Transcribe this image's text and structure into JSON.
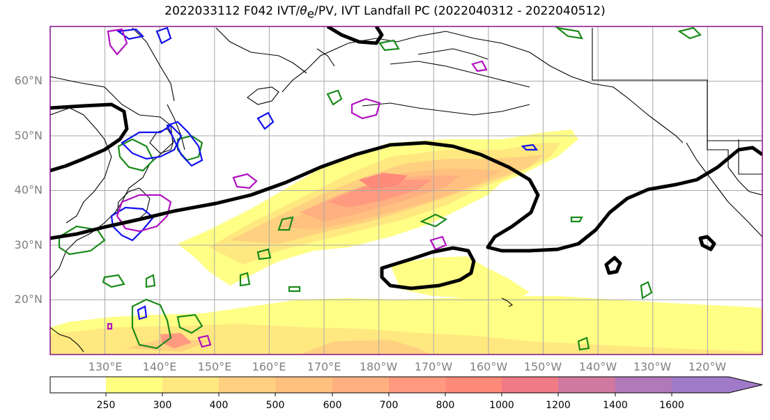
{
  "title": "2022033112 F042 IVT/θe/PV, IVT Landfall PC (2022040312 - 2022040512)",
  "title_parts": {
    "prefix": "2022033112 F042 IVT/",
    "theta": "θ",
    "theta_sub": "e",
    "suffix": "/PV, IVT Landfall PC (2022040312 - 2022040512)"
  },
  "map": {
    "projection": "PlateCarree",
    "lon_range": [
      120,
      250
    ],
    "lat_range": [
      10,
      70
    ],
    "gridlines": true,
    "lat_labels": [
      "60°N",
      "50°N",
      "40°N",
      "30°N",
      "20°N"
    ],
    "lon_labels": [
      "130°E",
      "140°E",
      "150°E",
      "160°E",
      "170°E",
      "180°W",
      "170°W",
      "160°W",
      "150°W",
      "140°W",
      "130°W",
      "120°W"
    ],
    "contour_colors": {
      "landfall_pc": "#000000",
      "theta_e": "#1a8a1a",
      "pv_blue": "#1010ee",
      "pv_magenta": "#b010c0",
      "coastline": "#000000"
    }
  },
  "colorbar": {
    "levels": [
      "250",
      "300",
      "400",
      "500",
      "600",
      "700",
      "800",
      "1000",
      "1200",
      "1400",
      "1600"
    ],
    "colors": [
      "#ffffff",
      "#ffff80",
      "#ffe880",
      "#ffd080",
      "#ffc080",
      "#ffb080",
      "#ff9a80",
      "#ff8a7a",
      "#f07a86",
      "#d078a0",
      "#b07ab8",
      "#a07ac8"
    ]
  }
}
